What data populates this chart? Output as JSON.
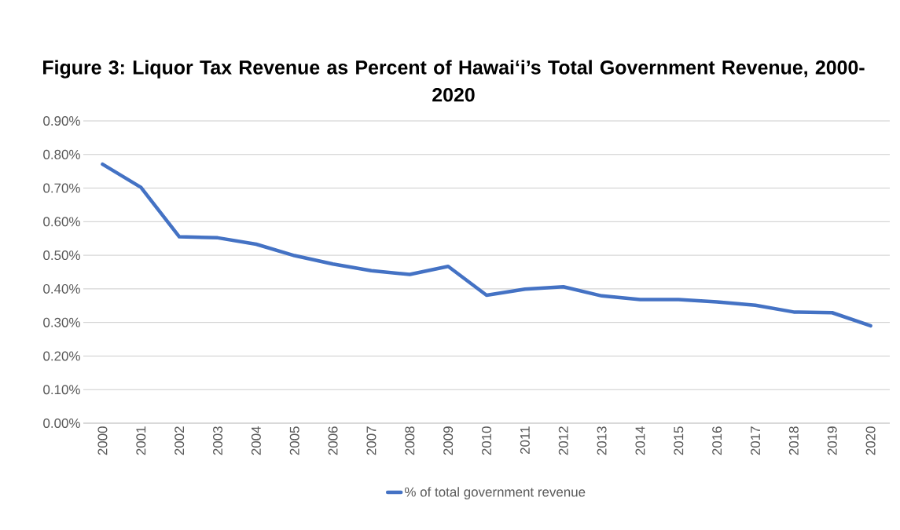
{
  "chart_data": {
    "type": "line",
    "title": "Figure 3: Liquor Tax Revenue as Percent of Hawai‘i’s Total Government Revenue, 2000-2020",
    "categories": [
      "2000",
      "2001",
      "2002",
      "2003",
      "2004",
      "2005",
      "2006",
      "2007",
      "2008",
      "2009",
      "2010",
      "2011",
      "2012",
      "2013",
      "2014",
      "2015",
      "2016",
      "2017",
      "2018",
      "2019",
      "2020"
    ],
    "series": [
      {
        "name": "% of total government revenue",
        "color": "#4472c4",
        "values": [
          0.771,
          0.702,
          0.555,
          0.552,
          0.533,
          0.499,
          0.474,
          0.454,
          0.443,
          0.467,
          0.381,
          0.399,
          0.406,
          0.379,
          0.368,
          0.368,
          0.361,
          0.351,
          0.331,
          0.329,
          0.29
        ]
      }
    ],
    "ylim": [
      0,
      0.9
    ],
    "yticks": [
      {
        "value": 0,
        "label": "0.00%"
      },
      {
        "value": 0.1,
        "label": "0.10%"
      },
      {
        "value": 0.2,
        "label": "0.20%"
      },
      {
        "value": 0.3,
        "label": "0.30%"
      },
      {
        "value": 0.4,
        "label": "0.40%"
      },
      {
        "value": 0.5,
        "label": "0.50%"
      },
      {
        "value": 0.6,
        "label": "0.60%"
      },
      {
        "value": 0.7,
        "label": "0.70%"
      },
      {
        "value": 0.8,
        "label": "0.80%"
      },
      {
        "value": 0.9,
        "label": "0.90%"
      }
    ],
    "grid": "y",
    "legend": "bottom",
    "marker": "none",
    "line_style": "solid"
  }
}
